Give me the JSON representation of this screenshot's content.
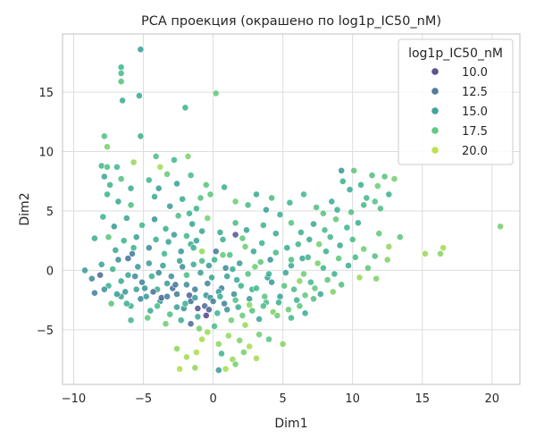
{
  "chart_data": {
    "type": "scatter",
    "title": "PCA проекция (окрашено по log1p_IC50_nM)",
    "xlabel": "Dim1",
    "ylabel": "Dim2",
    "xlim": [
      -10.8,
      22.0
    ],
    "ylim": [
      -9.6,
      19.9
    ],
    "x_ticks": [
      -10,
      -5,
      0,
      5,
      10,
      15,
      20
    ],
    "y_ticks": [
      -5,
      0,
      5,
      10,
      15
    ],
    "x_tick_labels": [
      "−10",
      "−5",
      "0",
      "5",
      "10",
      "15",
      "20"
    ],
    "y_tick_labels": [
      "−5",
      "0",
      "5",
      "10",
      "15"
    ],
    "grid": true,
    "legend": {
      "title": "log1p_IC50_nM",
      "placement": "top-right",
      "entries": [
        {
          "label": "10.0",
          "value": 10.0
        },
        {
          "label": "12.5",
          "value": 12.5
        },
        {
          "label": "15.0",
          "value": 15.0
        },
        {
          "label": "17.5",
          "value": 17.5
        },
        {
          "label": "20.0",
          "value": 20.0
        }
      ]
    },
    "colormap": "viridis",
    "color_range": [
      8.0,
      21.5
    ],
    "points": [
      [
        -6.6,
        17.1,
        16.6
      ],
      [
        -6.6,
        16.6,
        16.9
      ],
      [
        -6.6,
        15.9,
        17.4
      ],
      [
        -5.2,
        18.6,
        15.0
      ],
      [
        -6.5,
        14.3,
        16.0
      ],
      [
        -5.3,
        14.7,
        15.8
      ],
      [
        0.2,
        14.9,
        17.8
      ],
      [
        -2.0,
        13.7,
        16.4
      ],
      [
        -5.2,
        11.3,
        16.1
      ],
      [
        -7.8,
        11.3,
        17.2
      ],
      [
        -7.6,
        10.4,
        18.5
      ],
      [
        -4.1,
        9.6,
        17.1
      ],
      [
        -8.0,
        8.8,
        16.7
      ],
      [
        -7.6,
        8.7,
        17.2
      ],
      [
        -6.9,
        8.7,
        16.6
      ],
      [
        -5.7,
        9.1,
        19.2
      ],
      [
        -3.8,
        8.7,
        19.5
      ],
      [
        -1.8,
        9.6,
        18.5
      ],
      [
        -7.8,
        7.9,
        15.6
      ],
      [
        -7.4,
        7.2,
        16.4
      ],
      [
        -6.6,
        7.7,
        17.3
      ],
      [
        -5.9,
        6.9,
        15.9
      ],
      [
        -4.6,
        7.6,
        16.6
      ],
      [
        -3.3,
        8.1,
        17.9
      ],
      [
        -2.6,
        7.3,
        15.3
      ],
      [
        -1.6,
        8.0,
        16.8
      ],
      [
        -0.5,
        7.2,
        17.5
      ],
      [
        0.8,
        7.0,
        16.2
      ],
      [
        -7.6,
        6.4,
        16.5
      ],
      [
        -6.8,
        5.8,
        15.5
      ],
      [
        -5.9,
        5.5,
        17.1
      ],
      [
        -4.2,
        6.2,
        16.0
      ],
      [
        -3.1,
        5.4,
        14.8
      ],
      [
        -2.2,
        6.0,
        15.7
      ],
      [
        -1.2,
        5.2,
        16.3
      ],
      [
        -0.2,
        6.4,
        17.4
      ],
      [
        1.6,
        5.8,
        18.1
      ],
      [
        2.5,
        5.5,
        16.9
      ],
      [
        3.8,
        5.1,
        15.4
      ],
      [
        4.8,
        4.7,
        16.0
      ],
      [
        6.5,
        6.4,
        16.7
      ],
      [
        7.4,
        5.3,
        17.2
      ],
      [
        8.5,
        5.8,
        15.9
      ],
      [
        9.3,
        7.5,
        16.3
      ],
      [
        10.1,
        8.4,
        17.6
      ],
      [
        10.6,
        7.2,
        16.1
      ],
      [
        11.4,
        8.0,
        17.2
      ],
      [
        11.8,
        7.1,
        18.1
      ],
      [
        12.3,
        7.9,
        17.4
      ],
      [
        12.6,
        6.4,
        16.4
      ],
      [
        13.0,
        7.7,
        18.4
      ],
      [
        11.0,
        6.1,
        16.6
      ],
      [
        9.8,
        6.8,
        15.8
      ],
      [
        9.2,
        8.4,
        14.6
      ],
      [
        10.8,
        5.5,
        16.8
      ],
      [
        11.6,
        5.8,
        17.3
      ],
      [
        -7.9,
        4.5,
        16.3
      ],
      [
        -7.1,
        3.7,
        14.9
      ],
      [
        -6.2,
        4.4,
        15.5
      ],
      [
        -5.1,
        3.8,
        16.6
      ],
      [
        -4.2,
        4.3,
        14.4
      ],
      [
        -3.4,
        3.5,
        16.2
      ],
      [
        -2.5,
        4.6,
        17.0
      ],
      [
        -1.5,
        3.9,
        15.4
      ],
      [
        -0.4,
        4.4,
        18.4
      ],
      [
        0.5,
        3.2,
        15.8
      ],
      [
        1.6,
        4.0,
        16.9
      ],
      [
        2.4,
        3.4,
        15.3
      ],
      [
        3.6,
        3.8,
        16.4
      ],
      [
        4.5,
        3.1,
        15.8
      ],
      [
        5.6,
        4.0,
        17.4
      ],
      [
        6.3,
        3.2,
        16.1
      ],
      [
        7.2,
        3.9,
        15.6
      ],
      [
        8.0,
        3.4,
        16.9
      ],
      [
        8.8,
        4.3,
        17.7
      ],
      [
        9.6,
        3.6,
        16.5
      ],
      [
        6.9,
        2.6,
        15.9
      ],
      [
        7.6,
        2.2,
        18.3
      ],
      [
        8.4,
        2.8,
        16.7
      ],
      [
        9.1,
        2.1,
        15.8
      ],
      [
        10.0,
        2.6,
        17.0
      ],
      [
        10.8,
        1.8,
        18.2
      ],
      [
        11.9,
        3.1,
        17.8
      ],
      [
        12.6,
        2.0,
        19.0
      ],
      [
        13.4,
        2.8,
        17.5
      ],
      [
        15.2,
        1.4,
        19.2
      ],
      [
        16.3,
        1.4,
        18.8
      ],
      [
        16.5,
        1.9,
        19.4
      ],
      [
        20.6,
        3.7,
        18.3
      ],
      [
        11.1,
        0.2,
        17.6
      ],
      [
        10.5,
        -0.6,
        19.3
      ],
      [
        11.7,
        -0.7,
        18.5
      ],
      [
        -0.8,
        1.6,
        19.1
      ],
      [
        -1.6,
        2.2,
        16.0
      ],
      [
        -9.2,
        0.0,
        14.7
      ],
      [
        -8.7,
        -0.7,
        13.8
      ],
      [
        -8.0,
        0.5,
        15.2
      ],
      [
        -7.5,
        -1.3,
        16.2
      ],
      [
        -6.8,
        0.9,
        14.1
      ],
      [
        -6.1,
        -0.4,
        15.6
      ],
      [
        -5.7,
        1.9,
        16.4
      ],
      [
        -5.1,
        -1.0,
        13.5
      ],
      [
        -4.6,
        0.6,
        14.9
      ],
      [
        -4.0,
        -1.6,
        15.8
      ],
      [
        -3.5,
        1.4,
        16.7
      ],
      [
        -3.0,
        -0.5,
        14.2
      ],
      [
        -2.4,
        0.8,
        15.4
      ],
      [
        -1.9,
        -1.2,
        13.9
      ],
      [
        -1.4,
        1.9,
        16.1
      ],
      [
        -0.9,
        -0.2,
        15.0
      ],
      [
        -0.5,
        -2.1,
        14.4
      ],
      [
        0.1,
        0.9,
        16.5
      ],
      [
        0.6,
        -1.5,
        13.2
      ],
      [
        1.2,
        1.3,
        17.2
      ],
      [
        1.7,
        -0.8,
        15.7
      ],
      [
        2.3,
        2.0,
        18.1
      ],
      [
        2.8,
        -1.6,
        16.2
      ],
      [
        3.4,
        0.7,
        17.6
      ],
      [
        3.9,
        -0.6,
        15.1
      ],
      [
        4.5,
        1.5,
        16.9
      ],
      [
        5.1,
        -1.3,
        17.5
      ],
      [
        5.6,
        0.4,
        15.9
      ],
      [
        6.2,
        -0.9,
        18.8
      ],
      [
        6.8,
        1.1,
        16.4
      ],
      [
        7.3,
        -1.5,
        17.8
      ],
      [
        7.9,
        0.2,
        16.6
      ],
      [
        8.6,
        -1.8,
        18.6
      ],
      [
        9.2,
        -1.2,
        17.1
      ],
      [
        -7.3,
        -2.8,
        17.5
      ],
      [
        -6.6,
        -2.2,
        15.3
      ],
      [
        -5.9,
        -3.0,
        16.4
      ],
      [
        -5.2,
        -2.4,
        13.6
      ],
      [
        -4.5,
        -3.4,
        15.8
      ],
      [
        -3.8,
        -2.6,
        14.7
      ],
      [
        -3.1,
        -3.7,
        17.1
      ],
      [
        -2.6,
        -2.0,
        12.9
      ],
      [
        -2.1,
        -3.2,
        14.3
      ],
      [
        -1.6,
        -2.6,
        12.4
      ],
      [
        -1.1,
        -3.9,
        15.6
      ],
      [
        -0.6,
        -3.0,
        11.9
      ],
      [
        -0.2,
        -2.3,
        14.1
      ],
      [
        0.3,
        -3.6,
        16.3
      ],
      [
        0.8,
        -2.8,
        13.4
      ],
      [
        1.3,
        -4.2,
        18.2
      ],
      [
        1.8,
        -3.1,
        16.0
      ],
      [
        2.3,
        -4.6,
        19.3
      ],
      [
        2.8,
        -3.4,
        17.4
      ],
      [
        3.3,
        -4.1,
        15.5
      ],
      [
        3.8,
        -2.7,
        16.8
      ],
      [
        4.3,
        -3.5,
        18.6
      ],
      [
        4.8,
        -2.2,
        15.2
      ],
      [
        5.4,
        -3.3,
        17.9
      ],
      [
        6.0,
        -2.5,
        16.4
      ],
      [
        6.6,
        -3.6,
        15.9
      ],
      [
        7.2,
        -2.4,
        17.2
      ],
      [
        -1.6,
        -4.5,
        12.0
      ],
      [
        -1.0,
        -4.9,
        18.4
      ],
      [
        -0.4,
        -5.2,
        19.4
      ],
      [
        0.1,
        -4.7,
        17.0
      ],
      [
        -0.8,
        -5.8,
        19.6
      ],
      [
        0.4,
        -6.2,
        18.9
      ],
      [
        1.1,
        -5.5,
        19.1
      ],
      [
        1.9,
        -5.9,
        18.5
      ],
      [
        2.6,
        -6.4,
        19.6
      ],
      [
        3.3,
        -5.4,
        18.2
      ],
      [
        4.0,
        -5.8,
        17.5
      ],
      [
        5.0,
        -6.2,
        18.8
      ],
      [
        -2.6,
        -6.6,
        18.9
      ],
      [
        -1.9,
        -7.3,
        19.4
      ],
      [
        -1.2,
        -6.9,
        19.7
      ],
      [
        0.6,
        -7.0,
        16.5
      ],
      [
        1.4,
        -7.5,
        19.2
      ],
      [
        2.2,
        -6.9,
        18.4
      ],
      [
        3.1,
        -7.4,
        19.5
      ],
      [
        -2.4,
        -8.3,
        19.8
      ],
      [
        -1.3,
        -8.2,
        19.0
      ],
      [
        0.4,
        -8.4,
        14.9
      ],
      [
        0.9,
        -8.3,
        19.6
      ],
      [
        1.6,
        -7.9,
        18.4
      ],
      [
        -0.5,
        -3.8,
        9.8
      ],
      [
        -1.1,
        -3.2,
        10.6
      ],
      [
        -1.7,
        -2.1,
        11.3
      ],
      [
        -2.9,
        -1.5,
        12.0
      ],
      [
        -3.7,
        -2.3,
        11.6
      ],
      [
        -4.3,
        -1.8,
        12.3
      ],
      [
        0.2,
        1.6,
        12.8
      ],
      [
        1.6,
        3.0,
        10.9
      ],
      [
        -6.1,
        1.0,
        12.2
      ],
      [
        -8.1,
        -0.4,
        11.8
      ],
      [
        -5.8,
        1.4,
        13.1
      ],
      [
        -4.6,
        1.9,
        14.0
      ],
      [
        -3.2,
        2.4,
        15.1
      ],
      [
        -2.3,
        1.6,
        14.6
      ],
      [
        -1.2,
        2.5,
        15.3
      ],
      [
        -0.3,
        0.4,
        14.7
      ],
      [
        0.9,
        0.2,
        13.7
      ],
      [
        1.9,
        0.6,
        14.9
      ],
      [
        2.9,
        1.6,
        15.6
      ],
      [
        3.5,
        2.3,
        16.5
      ],
      [
        4.1,
        0.9,
        14.4
      ],
      [
        5.3,
        1.9,
        15.8
      ],
      [
        6.1,
        2.2,
        16.7
      ],
      [
        -7.0,
        1.7,
        15.4
      ],
      [
        -6.4,
        2.5,
        16.3
      ],
      [
        -5.5,
        2.8,
        15.1
      ],
      [
        -4.1,
        2.6,
        16.1
      ],
      [
        -2.8,
        3.0,
        14.9
      ],
      [
        -1.9,
        2.9,
        16.6
      ],
      [
        -0.8,
        3.3,
        15.5
      ],
      [
        0.7,
        2.6,
        16.2
      ],
      [
        2.1,
        2.7,
        17.7
      ],
      [
        -7.5,
        2.8,
        17.6
      ],
      [
        -8.5,
        2.7,
        16.0
      ],
      [
        -8.5,
        -1.9,
        13.3
      ],
      [
        -7.8,
        -1.6,
        14.2
      ],
      [
        -6.3,
        -1.8,
        14.6
      ],
      [
        -5.6,
        -0.5,
        13.7
      ],
      [
        -4.9,
        -1.5,
        14.4
      ],
      [
        -3.9,
        -0.2,
        13.8
      ],
      [
        -3.3,
        -1.1,
        15.0
      ],
      [
        -2.7,
        -1.2,
        12.7
      ],
      [
        -1.3,
        -1.6,
        13.0
      ],
      [
        -0.4,
        -1.1,
        13.6
      ],
      [
        0.4,
        -1.8,
        14.7
      ],
      [
        1.0,
        -0.5,
        15.3
      ],
      [
        1.5,
        -2.0,
        14.1
      ],
      [
        2.0,
        -1.3,
        16.4
      ],
      [
        2.6,
        -2.4,
        15.0
      ],
      [
        3.1,
        -1.5,
        16.6
      ],
      [
        3.7,
        -2.2,
        17.5
      ],
      [
        4.2,
        -1.0,
        14.8
      ],
      [
        4.7,
        -2.7,
        16.1
      ],
      [
        5.2,
        -0.2,
        15.5
      ],
      [
        5.8,
        -1.6,
        17.0
      ],
      [
        6.5,
        -0.3,
        18.1
      ],
      [
        7.0,
        -1.0,
        16.8
      ],
      [
        7.7,
        -2.0,
        15.6
      ],
      [
        8.2,
        -0.8,
        17.6
      ],
      [
        -0.8,
        0.8,
        16.9
      ],
      [
        -0.1,
        -0.6,
        15.6
      ],
      [
        0.7,
        1.3,
        17.9
      ],
      [
        1.4,
        0.1,
        16.0
      ],
      [
        -2.2,
        0.3,
        14.0
      ],
      [
        -3.6,
        0.4,
        15.3
      ],
      [
        -4.4,
        -0.5,
        16.0
      ],
      [
        -5.4,
        0.3,
        14.5
      ],
      [
        -6.6,
        -0.9,
        15.7
      ],
      [
        -7.2,
        0.1,
        16.5
      ],
      [
        -1.9,
        -0.4,
        17.0
      ],
      [
        -1.4,
        0.5,
        15.8
      ],
      [
        2.5,
        -0.3,
        17.3
      ],
      [
        3.0,
        0.3,
        18.0
      ],
      [
        4.0,
        -0.3,
        16.2
      ],
      [
        5.6,
        0.9,
        17.1
      ],
      [
        6.6,
        -2.1,
        17.7
      ],
      [
        7.5,
        0.6,
        18.4
      ],
      [
        0.0,
        -2.6,
        13.2
      ],
      [
        0.5,
        -2.2,
        15.9
      ],
      [
        1.0,
        -3.3,
        14.2
      ],
      [
        1.6,
        -2.5,
        17.2
      ],
      [
        -0.3,
        -3.3,
        11.2
      ],
      [
        -1.3,
        -2.3,
        14.8
      ],
      [
        -2.0,
        -2.8,
        16.3
      ],
      [
        -2.6,
        -3.1,
        15.1
      ],
      [
        -3.3,
        -2.2,
        13.1
      ],
      [
        -4.0,
        -3.0,
        16.9
      ],
      [
        -4.8,
        -2.2,
        14.9
      ],
      [
        -5.5,
        -1.6,
        15.3
      ],
      [
        -6.2,
        -2.8,
        16.0
      ],
      [
        -6.9,
        -2.0,
        14.7
      ],
      [
        2.1,
        -3.8,
        17.9
      ],
      [
        2.6,
        -2.9,
        18.9
      ],
      [
        3.6,
        -3.0,
        16.9
      ],
      [
        4.6,
        -3.8,
        18.1
      ],
      [
        5.6,
        -4.0,
        16.7
      ],
      [
        6.2,
        -3.0,
        17.6
      ],
      [
        -4.7,
        -4.0,
        17.8
      ],
      [
        -3.4,
        -4.5,
        18.2
      ],
      [
        -2.3,
        -4.2,
        16.1
      ],
      [
        -5.9,
        -4.2,
        16.7
      ],
      [
        -1.7,
        4.8,
        16.5
      ],
      [
        -0.9,
        6.1,
        17.3
      ],
      [
        -3.9,
        6.9,
        14.9
      ],
      [
        -2.8,
        9.3,
        16.6
      ],
      [
        3.1,
        6.4,
        15.7
      ],
      [
        4.2,
        6.1,
        17.0
      ],
      [
        5.5,
        5.7,
        16.5
      ],
      [
        7.9,
        4.8,
        17.4
      ],
      [
        8.9,
        5.1,
        16.2
      ],
      [
        9.9,
        4.9,
        17.3
      ],
      [
        10.4,
        4.0,
        16.0
      ],
      [
        12.0,
        5.2,
        17.1
      ],
      [
        6.4,
        1.0,
        15.7
      ],
      [
        8.1,
        1.6,
        16.2
      ],
      [
        9.0,
        1.0,
        17.6
      ],
      [
        9.7,
        0.4,
        15.8
      ],
      [
        10.2,
        1.1,
        16.9
      ],
      [
        11.6,
        1.2,
        17.3
      ],
      [
        12.5,
        0.9,
        18.6
      ],
      [
        8.7,
        -0.3,
        16.4
      ]
    ]
  }
}
